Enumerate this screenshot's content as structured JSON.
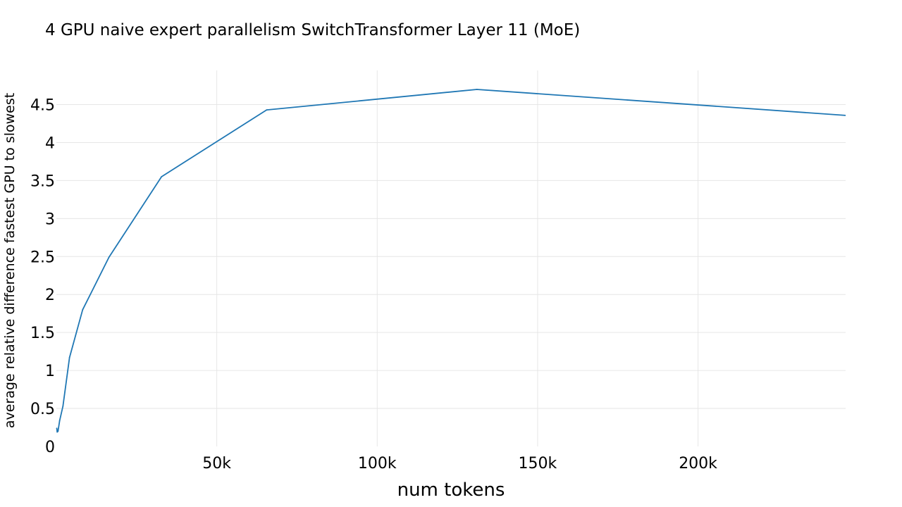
{
  "chart_data": {
    "type": "line",
    "title": "4 GPU naive expert parallelism SwitchTransformer Layer 11 (MoE)",
    "xlabel": "num tokens",
    "ylabel": "average relative difference fastest GPU to slowest",
    "xlim": [
      0,
      246000
    ],
    "ylim": [
      0,
      4.95
    ],
    "grid": true,
    "x_ticks": [
      {
        "value": 50000,
        "label": "50k"
      },
      {
        "value": 100000,
        "label": "100k"
      },
      {
        "value": 150000,
        "label": "150k"
      },
      {
        "value": 200000,
        "label": "200k"
      }
    ],
    "y_ticks": [
      {
        "value": 0,
        "label": "0"
      },
      {
        "value": 0.5,
        "label": "0.5"
      },
      {
        "value": 1,
        "label": "1"
      },
      {
        "value": 1.5,
        "label": "1.5"
      },
      {
        "value": 2,
        "label": "2"
      },
      {
        "value": 2.5,
        "label": "2.5"
      },
      {
        "value": 3,
        "label": "3"
      },
      {
        "value": 3.5,
        "label": "3.5"
      },
      {
        "value": 4,
        "label": "4"
      },
      {
        "value": 4.5,
        "label": "4.5"
      }
    ],
    "series": [
      {
        "color": "#1f77b4",
        "x": [
          128,
          256,
          512,
          1024,
          2048,
          4096,
          8192,
          16384,
          32768,
          65536,
          131072,
          262144
        ],
        "y": [
          0.24,
          0.19,
          0.2,
          0.34,
          0.53,
          1.17,
          1.8,
          2.49,
          3.55,
          4.43,
          4.7,
          4.31
        ]
      }
    ]
  }
}
